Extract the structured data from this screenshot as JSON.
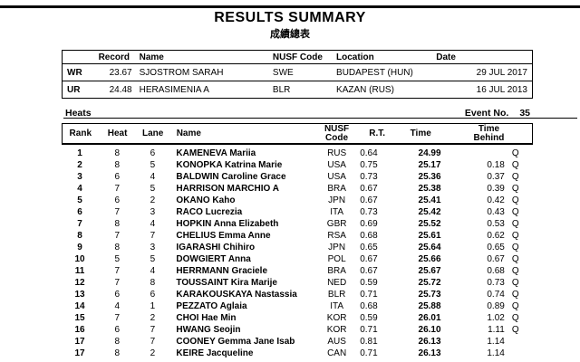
{
  "page": {
    "title": "RESULTS SUMMARY",
    "subtitle_zh": "成績總表"
  },
  "records": {
    "headers": {
      "record": "Record",
      "name": "Name",
      "code": "NUSF Code",
      "location": "Location",
      "date": "Date"
    },
    "rows": [
      {
        "label": "WR",
        "record": "23.67",
        "name": "SJOSTROM SARAH",
        "code": "SWE",
        "location": "BUDAPEST (HUN)",
        "date": "29 JUL 2017"
      },
      {
        "label": "UR",
        "record": "24.48",
        "name": "HERASIMENIA A",
        "code": "BLR",
        "location": "KAZAN (RUS)",
        "date": "16 JUL 2013"
      }
    ]
  },
  "heats": {
    "section_label": "Heats",
    "event_no_label": "Event No.",
    "event_no": "35",
    "headers": {
      "rank": "Rank",
      "heat": "Heat",
      "lane": "Lane",
      "name": "Name",
      "code_line1": "NUSF",
      "code_line2": "Code",
      "rt": "R.T.",
      "time": "Time",
      "behind_line1": "Time",
      "behind_line2": "Behind"
    },
    "rows": [
      [
        "1",
        "8",
        "6",
        "KAMENEVA Mariia",
        "RUS",
        "0.64",
        "24.99",
        "",
        "Q"
      ],
      [
        "2",
        "8",
        "5",
        "KONOPKA Katrina Marie",
        "USA",
        "0.75",
        "25.17",
        "0.18",
        "Q"
      ],
      [
        "3",
        "6",
        "4",
        "BALDWIN Caroline Grace",
        "USA",
        "0.73",
        "25.36",
        "0.37",
        "Q"
      ],
      [
        "4",
        "7",
        "5",
        "HARRISON MARCHIO A",
        "BRA",
        "0.67",
        "25.38",
        "0.39",
        "Q"
      ],
      [
        "5",
        "6",
        "2",
        "OKANO Kaho",
        "JPN",
        "0.67",
        "25.41",
        "0.42",
        "Q"
      ],
      [
        "6",
        "7",
        "3",
        "RACO Lucrezia",
        "ITA",
        "0.73",
        "25.42",
        "0.43",
        "Q"
      ],
      [
        "7",
        "8",
        "4",
        "HOPKIN Anna Elizabeth",
        "GBR",
        "0.69",
        "25.52",
        "0.53",
        "Q"
      ],
      [
        "8",
        "7",
        "7",
        "CHELIUS Emma Anne",
        "RSA",
        "0.68",
        "25.61",
        "0.62",
        "Q"
      ],
      [
        "9",
        "8",
        "3",
        "IGARASHI Chihiro",
        "JPN",
        "0.65",
        "25.64",
        "0.65",
        "Q"
      ],
      [
        "10",
        "5",
        "5",
        "DOWGIERT Anna",
        "POL",
        "0.67",
        "25.66",
        "0.67",
        "Q"
      ],
      [
        "11",
        "7",
        "4",
        "HERRMANN Graciele",
        "BRA",
        "0.67",
        "25.67",
        "0.68",
        "Q"
      ],
      [
        "12",
        "7",
        "8",
        "TOUSSAINT Kira Marije",
        "NED",
        "0.59",
        "25.72",
        "0.73",
        "Q"
      ],
      [
        "13",
        "6",
        "6",
        "KARAKOUSKAYA Nastassia",
        "BLR",
        "0.71",
        "25.73",
        "0.74",
        "Q"
      ],
      [
        "14",
        "4",
        "1",
        "PEZZATO Aglaia",
        "ITA",
        "0.68",
        "25.88",
        "0.89",
        "Q"
      ],
      [
        "15",
        "7",
        "2",
        "CHOI Hae Min",
        "KOR",
        "0.59",
        "26.01",
        "1.02",
        "Q"
      ],
      [
        "16",
        "6",
        "7",
        "HWANG Seojin",
        "KOR",
        "0.71",
        "26.10",
        "1.11",
        "Q"
      ],
      [
        "17",
        "8",
        "7",
        "COONEY Gemma Jane Isab",
        "AUS",
        "0.81",
        "26.13",
        "1.14",
        ""
      ],
      [
        "17",
        "8",
        "2",
        "KEIRE Jacqueline",
        "CAN",
        "0.71",
        "26.13",
        "1.14",
        ""
      ]
    ]
  },
  "colors": {
    "text": "#000000",
    "background": "#ffffff",
    "rule": "#000000"
  }
}
